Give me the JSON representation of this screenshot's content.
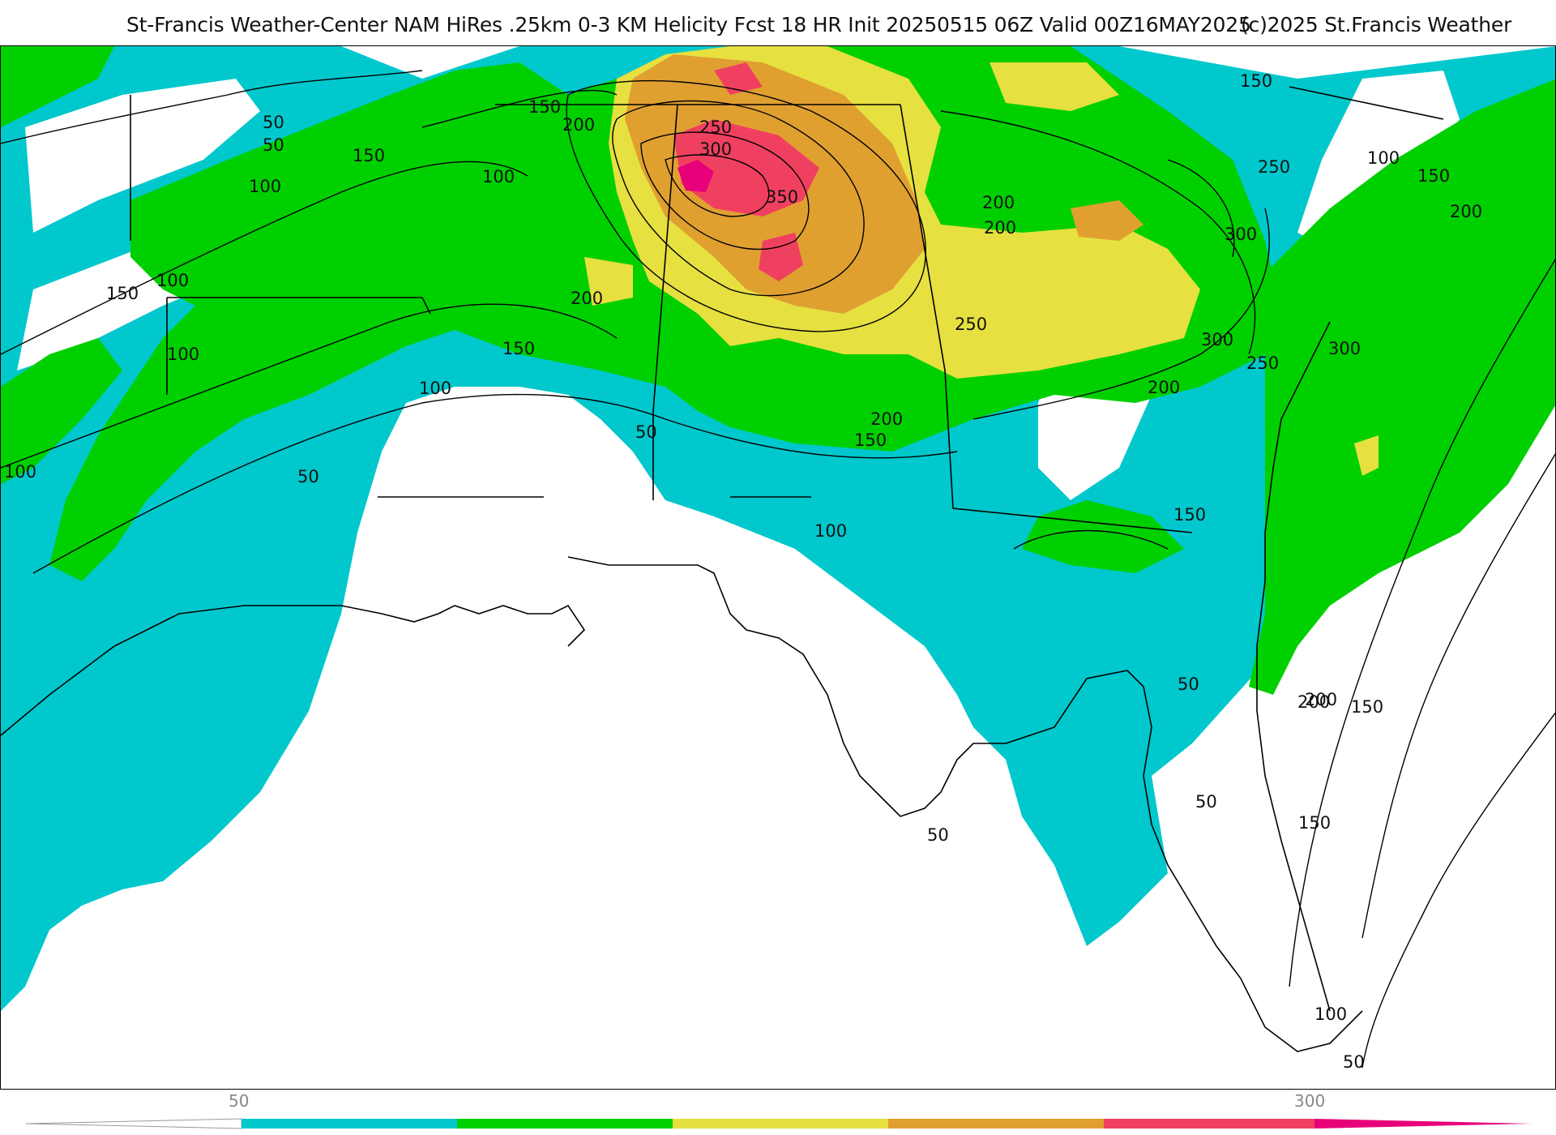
{
  "header": {
    "title": "St-Francis Weather-Center NAM HiRes .25km 0-3 KM Helicity Fcst 18 HR Init 20250515 06Z  Valid 00Z16MAY2025",
    "copyright": "(c)2025 St.Francis Weather"
  },
  "colors": {
    "cyan": "#00c8cc",
    "green": "#00d000",
    "yellow": "#e6e040",
    "orange": "#e0a030",
    "red": "#f04060",
    "magenta": "#e8007a",
    "contour": "#000000"
  },
  "contour_labels": [
    "50",
    "100",
    "150",
    "200",
    "250",
    "300",
    "350"
  ],
  "map_labels": [
    {
      "text": "50"
    },
    {
      "text": "50"
    },
    {
      "text": "150"
    },
    {
      "text": "100"
    },
    {
      "text": "150"
    },
    {
      "text": "200"
    },
    {
      "text": "100"
    },
    {
      "text": "250"
    },
    {
      "text": "300"
    },
    {
      "text": "350"
    },
    {
      "text": "200"
    },
    {
      "text": "150"
    },
    {
      "text": "100"
    },
    {
      "text": "150"
    },
    {
      "text": "100"
    },
    {
      "text": "200"
    },
    {
      "text": "150"
    },
    {
      "text": "100"
    },
    {
      "text": "50"
    },
    {
      "text": "100"
    },
    {
      "text": "50"
    },
    {
      "text": "200"
    },
    {
      "text": "150"
    },
    {
      "text": "200"
    },
    {
      "text": "250"
    },
    {
      "text": "250"
    },
    {
      "text": "300"
    },
    {
      "text": "200"
    },
    {
      "text": "250"
    },
    {
      "text": "300"
    },
    {
      "text": "200"
    },
    {
      "text": "100"
    },
    {
      "text": "150"
    },
    {
      "text": "200"
    },
    {
      "text": "300"
    },
    {
      "text": "150"
    },
    {
      "text": "100"
    },
    {
      "text": "50"
    },
    {
      "text": "50"
    },
    {
      "text": "50"
    },
    {
      "text": "200"
    },
    {
      "text": "150"
    },
    {
      "text": "150"
    },
    {
      "text": "100"
    },
    {
      "text": "50"
    }
  ],
  "colorbar": {
    "label_low": "50",
    "label_high": "300",
    "segments": [
      "#00c8cc",
      "#00d000",
      "#e6e040",
      "#e0a030",
      "#f04060",
      "#e8007a"
    ]
  }
}
